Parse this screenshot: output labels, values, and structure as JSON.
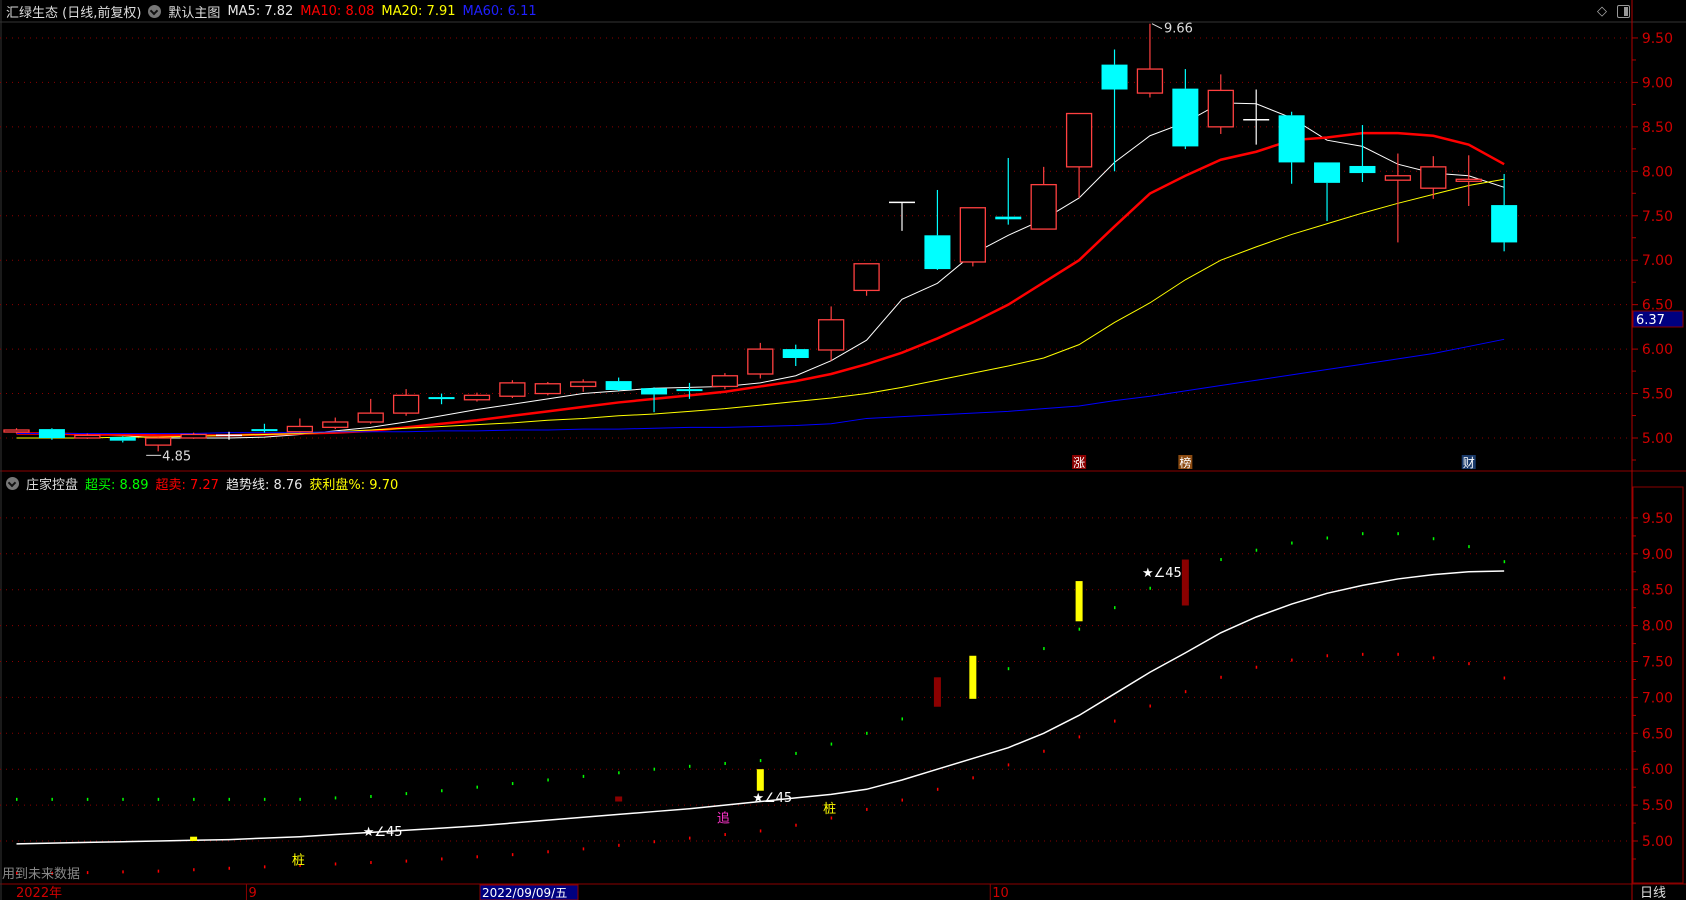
{
  "header": {
    "title": "汇绿生态 (日线,前复权)",
    "main_chart": "默认主图",
    "ma5": "MA5: 7.82",
    "ma10": "MA10: 8.08",
    "ma20": "MA20: 7.91",
    "ma60": "MA60: 6.11"
  },
  "indicator_header": {
    "name": "庄家控盘",
    "overbought": "超买: 8.89",
    "oversold": "超卖: 7.27",
    "trend": "趋势线: 8.76",
    "profit": "获利盘%: 9.70"
  },
  "footer": {
    "future_data_note": "用到未来数据",
    "period": "日线",
    "cursor_date": "2022/09/09/五",
    "x_labels": [
      {
        "label": "2022年",
        "index": 0
      },
      {
        "label": "9",
        "index": 7
      },
      {
        "label": "10",
        "index": 28
      }
    ]
  },
  "colors": {
    "up": "#ff4040",
    "down": "#00ffff",
    "doji": "#ffffff",
    "ma5": "#ffffff",
    "ma10": "#ff0000",
    "ma20": "#ffff00",
    "ma60": "#0000ff",
    "grid": "#8b0000",
    "axis_text": "#d00000",
    "overbought": "#00ff00",
    "oversold": "#ff0000",
    "trend": "#ffffff"
  },
  "icons": {
    "collapse": "chevron-circle-icon",
    "diamond": "diamond-icon",
    "toggle": "panel-toggle-icon"
  },
  "chart_data": [
    {
      "type": "candlestick",
      "ylim": [
        4.7,
        9.9
      ],
      "yticks": [
        "5.00",
        "5.50",
        "6.00",
        "6.50",
        "7.00",
        "7.50",
        "8.00",
        "8.50",
        "9.00",
        "9.50"
      ],
      "grid": true,
      "current_price_label": "6.37",
      "high_annotation": {
        "index": 32,
        "label": "9.66"
      },
      "low_annotation": {
        "index": 4,
        "label": "4.85"
      },
      "markers": [
        {
          "index": 30,
          "label": "涨",
          "color": "#8b0000"
        },
        {
          "index": 33,
          "label": "榜",
          "color": "#8b4a10"
        },
        {
          "index": 41,
          "label": "财",
          "color": "#1a3a6a"
        }
      ],
      "candles_ohlc": [
        [
          5.07,
          5.11,
          5.05,
          5.09
        ],
        [
          5.1,
          5.11,
          4.98,
          5.0
        ],
        [
          5.0,
          5.05,
          4.99,
          5.03
        ],
        [
          5.01,
          5.02,
          4.95,
          4.97
        ],
        [
          4.92,
          5.01,
          4.85,
          5.0
        ],
        [
          5.0,
          5.06,
          4.99,
          5.04
        ],
        [
          5.03,
          5.07,
          4.98,
          5.03
        ],
        [
          5.1,
          5.16,
          5.06,
          5.09
        ],
        [
          5.07,
          5.22,
          5.06,
          5.13
        ],
        [
          5.12,
          5.23,
          5.1,
          5.18
        ],
        [
          5.18,
          5.44,
          5.16,
          5.28
        ],
        [
          5.28,
          5.55,
          5.25,
          5.48
        ],
        [
          5.46,
          5.5,
          5.38,
          5.45
        ],
        [
          5.43,
          5.51,
          5.41,
          5.48
        ],
        [
          5.47,
          5.65,
          5.45,
          5.62
        ],
        [
          5.5,
          5.63,
          5.48,
          5.61
        ],
        [
          5.58,
          5.66,
          5.52,
          5.63
        ],
        [
          5.64,
          5.68,
          5.53,
          5.54
        ],
        [
          5.56,
          5.57,
          5.29,
          5.49
        ],
        [
          5.55,
          5.62,
          5.44,
          5.53
        ],
        [
          5.58,
          5.73,
          5.55,
          5.7
        ],
        [
          5.72,
          6.07,
          5.67,
          6.0
        ],
        [
          6.0,
          6.05,
          5.81,
          5.9
        ],
        [
          5.99,
          6.48,
          5.87,
          6.33
        ],
        [
          6.66,
          6.96,
          6.6,
          6.96
        ],
        [
          7.65,
          7.65,
          7.33,
          7.65
        ],
        [
          7.28,
          7.79,
          6.89,
          6.9
        ],
        [
          6.98,
          7.59,
          6.93,
          7.59
        ],
        [
          7.49,
          8.15,
          7.4,
          7.46
        ],
        [
          7.35,
          8.05,
          7.35,
          7.85
        ],
        [
          8.05,
          8.65,
          7.7,
          8.65
        ],
        [
          9.2,
          9.37,
          8.0,
          8.92
        ],
        [
          8.88,
          9.66,
          8.83,
          9.15
        ],
        [
          8.93,
          9.15,
          8.25,
          8.28
        ],
        [
          8.5,
          9.09,
          8.42,
          8.91
        ],
        [
          8.58,
          8.92,
          8.3,
          8.58
        ],
        [
          8.63,
          8.67,
          7.86,
          8.1
        ],
        [
          8.1,
          8.1,
          7.44,
          7.87
        ],
        [
          8.06,
          8.52,
          7.88,
          7.98
        ],
        [
          7.9,
          8.2,
          7.2,
          7.95
        ],
        [
          7.81,
          8.17,
          7.69,
          8.05
        ],
        [
          7.89,
          8.18,
          7.61,
          7.91
        ],
        [
          7.62,
          7.97,
          7.1,
          7.2
        ]
      ],
      "series": [
        {
          "name": "MA5",
          "color": "#ffffff",
          "values": [
            5.05,
            5.05,
            5.04,
            5.03,
            5.0,
            5.0,
            5.0,
            5.01,
            5.04,
            5.08,
            5.12,
            5.18,
            5.25,
            5.32,
            5.38,
            5.44,
            5.5,
            5.53,
            5.56,
            5.57,
            5.58,
            5.62,
            5.7,
            5.87,
            6.1,
            6.56,
            6.74,
            7.07,
            7.28,
            7.46,
            7.7,
            8.1,
            8.4,
            8.55,
            8.77,
            8.76,
            8.6,
            8.35,
            8.28,
            8.08,
            7.98,
            7.95,
            7.82
          ]
        },
        {
          "name": "MA10",
          "color": "#ff0000",
          "values": [
            5.05,
            5.05,
            5.04,
            5.04,
            5.03,
            5.03,
            5.03,
            5.04,
            5.05,
            5.06,
            5.08,
            5.12,
            5.16,
            5.2,
            5.25,
            5.3,
            5.35,
            5.4,
            5.44,
            5.48,
            5.52,
            5.58,
            5.64,
            5.72,
            5.83,
            5.96,
            6.12,
            6.3,
            6.5,
            6.75,
            7.0,
            7.38,
            7.75,
            7.95,
            8.13,
            8.22,
            8.35,
            8.38,
            8.43,
            8.43,
            8.4,
            8.3,
            8.08
          ]
        },
        {
          "name": "MA20",
          "color": "#ffff00",
          "values": [
            5.0,
            5.0,
            5.0,
            5.01,
            5.01,
            5.02,
            5.03,
            5.04,
            5.05,
            5.07,
            5.09,
            5.11,
            5.13,
            5.15,
            5.17,
            5.2,
            5.22,
            5.25,
            5.27,
            5.3,
            5.33,
            5.37,
            5.41,
            5.45,
            5.5,
            5.57,
            5.65,
            5.73,
            5.81,
            5.9,
            6.05,
            6.3,
            6.52,
            6.78,
            7.0,
            7.15,
            7.29,
            7.41,
            7.53,
            7.64,
            7.74,
            7.84,
            7.91
          ]
        },
        {
          "name": "MA60",
          "color": "#0000ff",
          "values": [
            5.05,
            5.05,
            5.05,
            5.05,
            5.05,
            5.05,
            5.06,
            5.06,
            5.06,
            5.07,
            5.07,
            5.07,
            5.08,
            5.08,
            5.09,
            5.09,
            5.1,
            5.1,
            5.11,
            5.12,
            5.12,
            5.13,
            5.14,
            5.16,
            5.22,
            5.24,
            5.26,
            5.28,
            5.3,
            5.33,
            5.36,
            5.42,
            5.47,
            5.53,
            5.59,
            5.65,
            5.71,
            5.77,
            5.83,
            5.89,
            5.95,
            6.03,
            6.11
          ]
        }
      ]
    },
    {
      "type": "line",
      "ylim": [
        4.4,
        10.0
      ],
      "yticks": [
        "5.00",
        "5.50",
        "6.00",
        "6.50",
        "7.00",
        "7.50",
        "8.00",
        "8.50",
        "9.00",
        "9.50"
      ],
      "grid": true,
      "series": [
        {
          "name": "趋势线",
          "style": "line",
          "color": "#ffffff",
          "values": [
            4.96,
            4.97,
            4.98,
            4.99,
            5.0,
            5.01,
            5.02,
            5.04,
            5.06,
            5.09,
            5.12,
            5.15,
            5.18,
            5.21,
            5.25,
            5.29,
            5.33,
            5.37,
            5.41,
            5.45,
            5.5,
            5.55,
            5.6,
            5.65,
            5.72,
            5.85,
            6.0,
            6.15,
            6.3,
            6.5,
            6.75,
            7.05,
            7.35,
            7.62,
            7.9,
            8.12,
            8.3,
            8.45,
            8.56,
            8.65,
            8.71,
            8.75,
            8.76
          ]
        },
        {
          "name": "超买",
          "style": "dots",
          "color": "#00ff00",
          "values": [
            5.58,
            5.58,
            5.58,
            5.58,
            5.58,
            5.58,
            5.58,
            5.58,
            5.58,
            5.6,
            5.62,
            5.66,
            5.7,
            5.75,
            5.8,
            5.85,
            5.9,
            5.95,
            6.0,
            6.04,
            6.08,
            6.12,
            6.22,
            6.35,
            6.5,
            6.7,
            6.92,
            7.15,
            7.4,
            7.68,
            7.95,
            8.25,
            8.52,
            8.75,
            8.92,
            9.05,
            9.15,
            9.22,
            9.28,
            9.28,
            9.21,
            9.1,
            8.89
          ]
        },
        {
          "name": "超卖",
          "style": "dots",
          "color": "#ff0000",
          "values": [
            4.55,
            4.55,
            4.56,
            4.57,
            4.58,
            4.6,
            4.62,
            4.64,
            4.66,
            4.68,
            4.7,
            4.72,
            4.75,
            4.78,
            4.81,
            4.85,
            4.89,
            4.94,
            4.99,
            5.04,
            5.09,
            5.14,
            5.22,
            5.32,
            5.44,
            5.57,
            5.72,
            5.88,
            6.06,
            6.25,
            6.45,
            6.67,
            6.88,
            7.08,
            7.28,
            7.42,
            7.52,
            7.58,
            7.6,
            7.6,
            7.55,
            7.47,
            7.27
          ]
        }
      ],
      "bars": [
        {
          "index": 5,
          "from": 5.0,
          "to": 5.06,
          "color": "#ffff00"
        },
        {
          "index": 17,
          "from": 5.55,
          "to": 5.62,
          "color": "#8b0000"
        },
        {
          "index": 21,
          "from": 5.7,
          "to": 6.0,
          "color": "#ffff00"
        },
        {
          "index": 26,
          "from": 6.87,
          "to": 7.28,
          "color": "#8b0000"
        },
        {
          "index": 27,
          "from": 6.98,
          "to": 7.58,
          "color": "#ffff00"
        },
        {
          "index": 30,
          "from": 8.06,
          "to": 8.62,
          "color": "#ffff00"
        },
        {
          "index": 33,
          "from": 8.28,
          "to": 8.92,
          "color": "#8b0000"
        }
      ],
      "annotations": [
        {
          "index": 10,
          "value": 5.14,
          "label": "★∠45",
          "color": "#ffffff"
        },
        {
          "index": 21,
          "value": 5.61,
          "label": "★∠45",
          "color": "#ffffff"
        },
        {
          "index": 32,
          "value": 8.75,
          "label": "★∠45",
          "color": "#ffffff"
        },
        {
          "index": 8,
          "value": 4.74,
          "label": "桩",
          "color": "#ffff00"
        },
        {
          "index": 23,
          "value": 5.46,
          "label": "桩",
          "color": "#ffff00"
        },
        {
          "index": 20,
          "value": 5.33,
          "label": "追",
          "color": "#ff33cc"
        }
      ]
    }
  ]
}
